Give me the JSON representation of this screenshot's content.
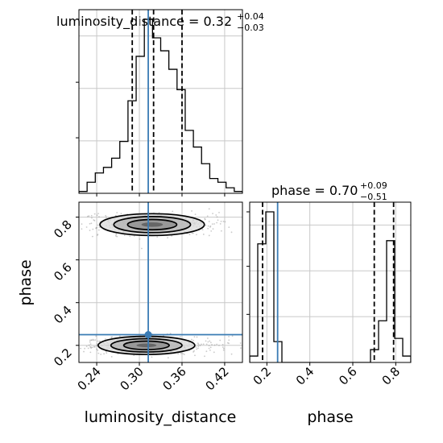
{
  "chart_data": [
    {
      "type": "histogram",
      "panel": "luminosity_distance marginal",
      "title_lhs": "luminosity_distance = 0.32",
      "title_sup": "+0.04",
      "title_sub": "−0.03",
      "xlim": [
        0.215,
        0.445
      ],
      "bin_edges": [
        0.215,
        0.2265,
        0.238,
        0.2495,
        0.261,
        0.2725,
        0.284,
        0.2955,
        0.307,
        0.3185,
        0.33,
        0.3415,
        0.353,
        0.3645,
        0.376,
        0.3875,
        0.399,
        0.4105,
        0.422,
        0.4335,
        0.445
      ],
      "counts": [
        0.01,
        0.06,
        0.11,
        0.14,
        0.19,
        0.28,
        0.5,
        0.74,
        0.94,
        0.84,
        0.77,
        0.67,
        0.56,
        0.34,
        0.25,
        0.16,
        0.08,
        0.06,
        0.03,
        0.01
      ],
      "quantiles": [
        0.29,
        0.32,
        0.36
      ],
      "truth": 0.3125,
      "grid": true
    },
    {
      "type": "histogram",
      "panel": "phase marginal",
      "title_lhs": "phase = 0.70",
      "title_sup": "+0.09",
      "title_sub": "−0.51",
      "xlim": [
        0.12,
        0.87
      ],
      "xticks": [
        "0.2",
        "0.4",
        "0.6",
        "0.8"
      ],
      "xlabel": "phase",
      "bin_edges": [
        0.12,
        0.1575,
        0.195,
        0.2325,
        0.27,
        0.3075,
        0.345,
        0.3825,
        0.42,
        0.4575,
        0.495,
        0.5325,
        0.57,
        0.6075,
        0.645,
        0.6825,
        0.72,
        0.7575,
        0.795,
        0.8325,
        0.87
      ],
      "counts": [
        0.04,
        0.74,
        0.94,
        0.13,
        0,
        0,
        0,
        0,
        0,
        0,
        0,
        0,
        0,
        0,
        0,
        0.08,
        0.26,
        0.76,
        0.15,
        0.04
      ],
      "quantiles": [
        0.18,
        0.7,
        0.79
      ],
      "truth": 0.25,
      "grid": true
    },
    {
      "type": "2d-density-contour",
      "panel": "phase vs luminosity_distance",
      "xlabel": "luminosity_distance",
      "ylabel": "phase",
      "xlim": [
        0.215,
        0.445
      ],
      "ylim": [
        0.12,
        0.87
      ],
      "xticks": [
        "0.24",
        "0.30",
        "0.36",
        "0.42"
      ],
      "yticks": [
        "0.2",
        "0.4",
        "0.6",
        "0.8"
      ],
      "truth": [
        0.3125,
        0.25
      ],
      "modes": [
        {
          "x": 0.318,
          "y": 0.765,
          "sx": 0.027,
          "sy": 0.03
        },
        {
          "x": 0.31,
          "y": 0.2,
          "sx": 0.025,
          "sy": 0.025
        }
      ],
      "grid": true
    }
  ]
}
